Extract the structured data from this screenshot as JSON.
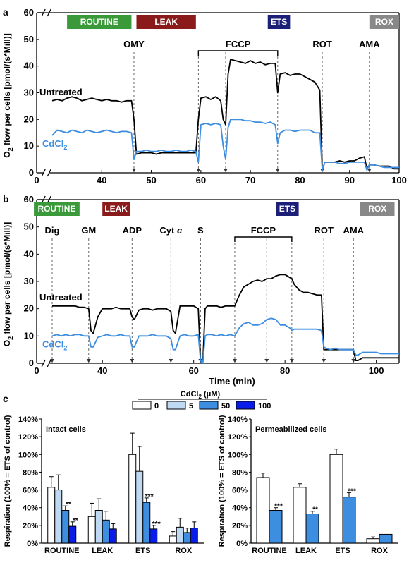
{
  "chart_data": [
    {
      "id": "a",
      "type": "line",
      "panel_label": "a",
      "xlim": [
        0,
        100
      ],
      "ylim": [
        0,
        60
      ],
      "x_ticks": [
        0,
        40,
        50,
        60,
        70,
        80,
        90,
        100
      ],
      "y_ticks": [
        0,
        10,
        20,
        30,
        40,
        50,
        60
      ],
      "x_break_after": 0,
      "ylabel": "O2 flow per cells [pmol/(s*Mill)]",
      "xlabel": "",
      "states": [
        {
          "label": "ROUTINE",
          "color": "#3a9a3a",
          "x0": 33,
          "x1": 46
        },
        {
          "label": "LEAK",
          "color": "#8b1a1a",
          "x0": 47,
          "x1": 59
        },
        {
          "label": "ETS",
          "color": "#1b1f78",
          "x0": 73.5,
          "x1": 78
        },
        {
          "label": "ROX",
          "color": "#888888",
          "x0": 94,
          "x1": 100
        }
      ],
      "injections": [
        {
          "label": "OMY",
          "x": 46.5
        },
        {
          "label": "",
          "x": 59.5
        },
        {
          "label": "",
          "x": 65
        },
        {
          "label": "",
          "x": 75.5
        },
        {
          "label": "ROT",
          "x": 84.5
        },
        {
          "label": "AMA",
          "x": 94
        }
      ],
      "bracket": {
        "label": "FCCP",
        "x0": 59.5,
        "x1": 75.5
      },
      "series": [
        {
          "name": "Untreated",
          "color": "#000000",
          "x": [
            30,
            31,
            32,
            33,
            34,
            35,
            36,
            37,
            38,
            39,
            40,
            41,
            42,
            43,
            44,
            45,
            46,
            46.5,
            47,
            48,
            49,
            50,
            51,
            52,
            53,
            54,
            55,
            56,
            57,
            58,
            59,
            59.5,
            60,
            61,
            62,
            63,
            64,
            64.5,
            65,
            65.5,
            66,
            67,
            68,
            69,
            70,
            71,
            72,
            73,
            74,
            75,
            75.5,
            76,
            77,
            78,
            79,
            80,
            81,
            82,
            83,
            84,
            84.5,
            85,
            86,
            87,
            88,
            89,
            90,
            91,
            92,
            93,
            93.5,
            94,
            95,
            96,
            97,
            98,
            99,
            100
          ],
          "y": [
            27,
            27.5,
            27,
            28,
            28.5,
            28,
            27,
            27.5,
            28,
            27.5,
            27,
            27.5,
            27,
            27,
            26.5,
            27,
            27,
            20,
            7,
            7.5,
            7.5,
            7.5,
            7,
            7.5,
            7.5,
            7.5,
            7.5,
            7.5,
            7.5,
            7.5,
            7.5,
            20,
            28,
            28.5,
            27.5,
            28.5,
            27,
            20,
            18,
            37,
            42.5,
            42,
            41.5,
            41,
            42,
            41,
            41.5,
            40.5,
            41,
            41,
            30,
            37,
            37.5,
            36.5,
            37,
            37,
            36,
            35,
            34,
            31,
            1,
            4,
            4,
            4,
            4.5,
            4,
            4.5,
            4.5,
            5.5,
            6,
            1.5,
            3,
            3,
            2.5,
            2.5,
            2.5,
            1.5,
            1.5
          ]
        },
        {
          "name": "CdCl2",
          "color": "#3d8de0",
          "x": [
            30,
            31,
            32,
            33,
            34,
            35,
            36,
            37,
            38,
            39,
            40,
            41,
            42,
            43,
            44,
            45,
            46,
            46.5,
            47,
            48,
            49,
            50,
            51,
            52,
            53,
            54,
            55,
            56,
            57,
            58,
            59,
            59.5,
            60,
            61,
            62,
            63,
            64,
            64.5,
            65,
            65.5,
            66,
            67,
            68,
            69,
            70,
            71,
            72,
            73,
            74,
            75,
            75.5,
            76,
            77,
            78,
            79,
            80,
            81,
            82,
            83,
            84,
            84.5,
            85,
            86,
            87,
            88,
            89,
            90,
            91,
            92,
            93,
            93.5,
            94,
            95,
            96,
            97,
            98,
            99,
            100
          ],
          "y": [
            14,
            16,
            15.5,
            15,
            16,
            15.5,
            15,
            16,
            15.5,
            15,
            15.5,
            16,
            15.5,
            15,
            15.5,
            15.5,
            15,
            5,
            8,
            8,
            8.5,
            8,
            8,
            8.5,
            8,
            8,
            8.5,
            8,
            8,
            8.5,
            8,
            4,
            18,
            18.5,
            18,
            18.5,
            18,
            10,
            5,
            17,
            20,
            20,
            20,
            19.5,
            19.5,
            19,
            19,
            18.5,
            19,
            18,
            11,
            15,
            16,
            16,
            15.5,
            16,
            16,
            16,
            15,
            15,
            1,
            4,
            4,
            4,
            3.5,
            3.5,
            4,
            4,
            4,
            4,
            1,
            3,
            3,
            2.5,
            2,
            2,
            2,
            2
          ]
        }
      ]
    },
    {
      "id": "b",
      "type": "line",
      "panel_label": "b",
      "xlim": [
        0,
        105
      ],
      "ylim": [
        0,
        60
      ],
      "x_ticks": [
        0,
        40,
        60,
        80,
        100
      ],
      "y_ticks": [
        0,
        10,
        20,
        30,
        40,
        50,
        60
      ],
      "x_break_after": 0,
      "ylabel": "O2 flow per cells [pmol/(s*Mill)]",
      "xlabel": "Time (min)",
      "states": [
        {
          "label": "ROUTINE",
          "color": "#3a9a3a",
          "x0": 25,
          "x1": 35
        },
        {
          "label": "LEAK",
          "color": "#8b1a1a",
          "x0": 40,
          "x1": 46
        },
        {
          "label": "ETS",
          "color": "#1b1f78",
          "x0": 78,
          "x1": 83
        },
        {
          "label": "ROX",
          "color": "#888888",
          "x0": 96.5,
          "x1": 104
        }
      ],
      "injections": [
        {
          "label": "Dig",
          "x": 29
        },
        {
          "label": "GM",
          "x": 37
        },
        {
          "label": "ADP",
          "x": 46.5
        },
        {
          "label": "Cyt c",
          "x": 55
        },
        {
          "label": "S",
          "x": 61.5
        },
        {
          "label": "",
          "x": 69
        },
        {
          "label": "",
          "x": 76
        },
        {
          "label": "",
          "x": 81.5
        },
        {
          "label": "ROT",
          "x": 88.5
        },
        {
          "label": "AMA",
          "x": 95
        }
      ],
      "bracket": {
        "label": "FCCP",
        "x0": 69,
        "x1": 81.5
      },
      "series": [
        {
          "name": "Untreated",
          "color": "#000000",
          "x": [
            29,
            30,
            31,
            32,
            33,
            34,
            35,
            36,
            37,
            37.5,
            38,
            39,
            40,
            41,
            42,
            43,
            44,
            45,
            46,
            46.5,
            47,
            48,
            49,
            50,
            51,
            52,
            53,
            54,
            55,
            55.5,
            56,
            57,
            58,
            59,
            60,
            61,
            61.5,
            62,
            62.5,
            63,
            64,
            65,
            66,
            67,
            68,
            69,
            70,
            71,
            72,
            73,
            74,
            75,
            76,
            77,
            78,
            79,
            80,
            81,
            81.5,
            82,
            83,
            84,
            85,
            86,
            87,
            88,
            88.5,
            89,
            90,
            91,
            92,
            93,
            94,
            95,
            95.5,
            96,
            97,
            98,
            99,
            100,
            101,
            102,
            103,
            104,
            105
          ],
          "y": [
            21,
            21,
            21,
            21,
            21,
            21,
            20.5,
            20.5,
            20,
            12,
            11,
            17,
            20,
            20,
            20,
            20.5,
            20,
            20,
            20,
            17,
            16,
            19.5,
            20,
            20,
            19.5,
            20,
            20,
            20,
            19,
            12,
            11,
            21,
            21,
            21,
            21,
            20,
            1,
            0,
            20,
            21,
            21,
            21,
            20.5,
            21,
            21,
            21,
            25,
            28,
            29,
            30,
            30.5,
            30,
            31,
            31,
            32,
            32.5,
            32.5,
            31.5,
            31,
            29,
            27,
            26,
            26,
            25.5,
            25,
            25,
            5,
            5,
            5,
            5,
            5,
            5,
            5,
            5,
            1,
            1,
            2,
            2,
            2,
            2,
            2,
            2,
            2,
            2,
            2
          ]
        },
        {
          "name": "CdCl2",
          "color": "#3d8de0",
          "x": [
            29,
            30,
            31,
            32,
            33,
            34,
            35,
            36,
            37,
            37.5,
            38,
            39,
            40,
            41,
            42,
            43,
            44,
            45,
            46,
            46.5,
            47,
            48,
            49,
            50,
            51,
            52,
            53,
            54,
            55,
            55.5,
            56,
            57,
            58,
            59,
            60,
            61,
            61.5,
            62,
            62.5,
            63,
            64,
            65,
            66,
            67,
            68,
            69,
            70,
            71,
            72,
            73,
            74,
            75,
            76,
            77,
            78,
            79,
            80,
            81,
            81.5,
            82,
            83,
            84,
            85,
            86,
            87,
            88,
            88.5,
            89,
            90,
            91,
            92,
            93,
            94,
            95,
            95.5,
            96,
            97,
            98,
            99,
            100,
            101,
            102,
            103,
            104,
            105
          ],
          "y": [
            10,
            10.5,
            10,
            10.5,
            10,
            10.5,
            10.5,
            10,
            10,
            6,
            6,
            9.5,
            10,
            10.5,
            10,
            10,
            10.5,
            10,
            10,
            6,
            6,
            10,
            10,
            10,
            10.5,
            10,
            10,
            10,
            9,
            5,
            5,
            10,
            10.5,
            10,
            10,
            10.5,
            1,
            0,
            10,
            10.5,
            10.5,
            10,
            10.5,
            10,
            10.5,
            10,
            13,
            14.5,
            15,
            14,
            14,
            14.5,
            16,
            16.5,
            16,
            14,
            14,
            13,
            12,
            12.5,
            12.5,
            12.5,
            12.5,
            12.5,
            12.5,
            12,
            6,
            5.5,
            5,
            5.5,
            5,
            5,
            5,
            5,
            3,
            3,
            4,
            4,
            4,
            4,
            3.5,
            3.5,
            3.5,
            3.5,
            3.5
          ]
        }
      ]
    },
    {
      "id": "c1",
      "type": "bar",
      "panel_label": "c",
      "title": "Intact cells",
      "ylabel": "Respiration (100% = ETS of control)",
      "ylim": [
        0,
        140
      ],
      "y_ticks": [
        "0%",
        "20%",
        "40%",
        "60%",
        "80%",
        "100%",
        "120%",
        "140%"
      ],
      "legend_title": "CdCl2 (μM)",
      "categories": [
        "ROUTINE",
        "LEAK",
        "ETS",
        "ROX"
      ],
      "series": [
        {
          "name": "0",
          "color": "#ffffff",
          "values": [
            63,
            30,
            100,
            8
          ],
          "errors": [
            12,
            15,
            24,
            5
          ]
        },
        {
          "name": "5",
          "color": "#bfd9f2",
          "values": [
            60,
            37,
            81,
            18
          ],
          "errors": [
            17,
            13,
            28,
            10
          ]
        },
        {
          "name": "50",
          "color": "#3d8de0",
          "values": [
            37,
            26,
            46,
            12
          ],
          "errors": [
            5,
            10,
            5,
            5
          ]
        },
        {
          "name": "100",
          "color": "#0a1de8",
          "values": [
            19,
            16,
            16,
            17
          ],
          "errors": [
            5,
            6,
            4,
            7
          ]
        }
      ],
      "annotations": [
        {
          "category": "ROUTINE",
          "series": "50",
          "text": "**"
        },
        {
          "category": "ROUTINE",
          "series": "100",
          "text": "**"
        },
        {
          "category": "ETS",
          "series": "50",
          "text": "***"
        },
        {
          "category": "ETS",
          "series": "100",
          "text": "***"
        }
      ]
    },
    {
      "id": "c2",
      "type": "bar",
      "title": "Permeabilized cells",
      "ylim": [
        0,
        140
      ],
      "y_ticks": [
        "0%",
        "20%",
        "40%",
        "60%",
        "80%",
        "100%",
        "120%",
        "140%"
      ],
      "categories": [
        "ROUTINE",
        "LEAK",
        "ETS",
        "ROX"
      ],
      "series": [
        {
          "name": "0",
          "color": "#ffffff",
          "values": [
            74,
            63,
            100,
            5
          ],
          "errors": [
            5,
            4,
            6,
            2
          ]
        },
        {
          "name": "50",
          "color": "#3d8de0",
          "values": [
            37,
            33,
            52,
            10
          ],
          "errors": [
            3,
            3,
            5,
            0
          ]
        }
      ],
      "annotations": [
        {
          "category": "ROUTINE",
          "series": "50",
          "text": "***"
        },
        {
          "category": "LEAK",
          "series": "50",
          "text": "**"
        },
        {
          "category": "ETS",
          "series": "50",
          "text": "***"
        }
      ]
    }
  ]
}
